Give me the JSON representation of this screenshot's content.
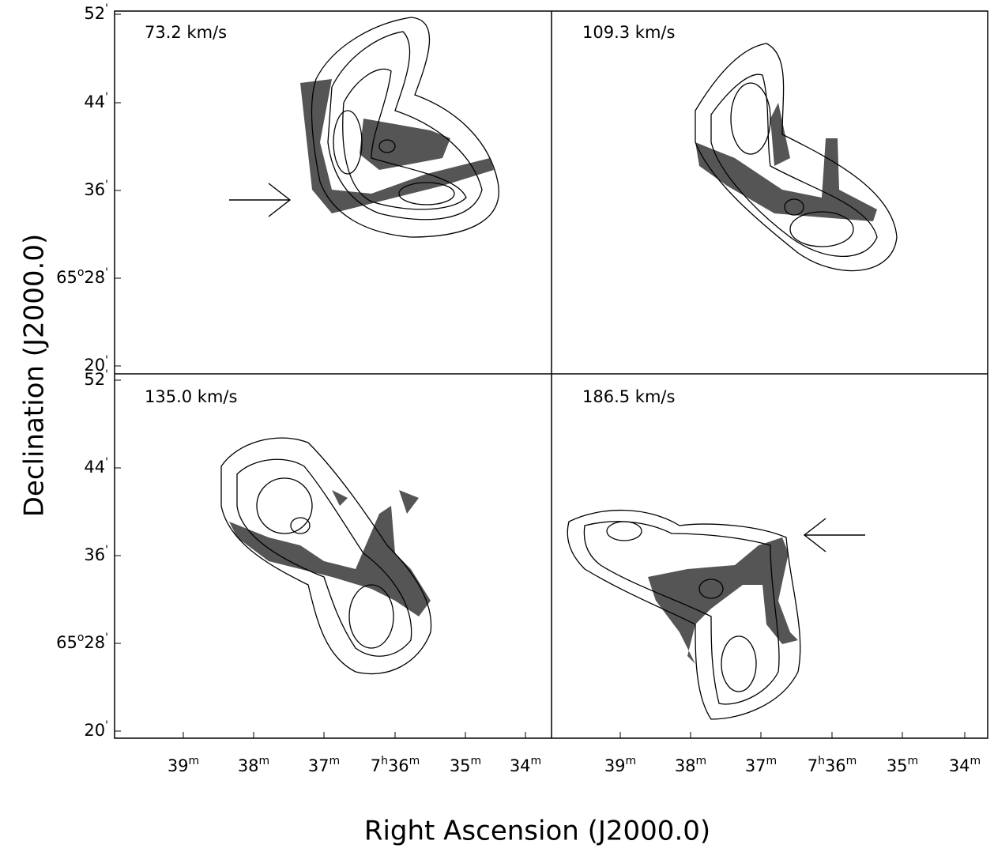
{
  "panels": [
    {
      "label": "73.2 km/s"
    },
    {
      "label": "109.3 km/s"
    },
    {
      "label": "135.0 km/s"
    },
    {
      "label": "186.5 km/s"
    }
  ],
  "y_axis": {
    "title": "Declination (J2000.0)",
    "ticks": [
      [
        [
          "52",
          "'"
        ]
      ],
      [
        [
          "44",
          "'"
        ]
      ],
      [
        [
          "36",
          "'"
        ]
      ],
      [
        [
          "65",
          "o"
        ],
        [
          "28",
          "'"
        ]
      ],
      [
        [
          "20",
          "'"
        ]
      ]
    ]
  },
  "x_axis": {
    "title": "Right Ascension (J2000.0)",
    "ticks": [
      [
        [
          "39",
          "m"
        ]
      ],
      [
        [
          "38",
          "m"
        ]
      ],
      [
        [
          "37",
          "m"
        ]
      ],
      [
        [
          "7",
          "h"
        ],
        [
          "36",
          "m"
        ]
      ],
      [
        [
          "35",
          "m"
        ]
      ],
      [
        [
          "34",
          "m"
        ]
      ]
    ]
  }
}
